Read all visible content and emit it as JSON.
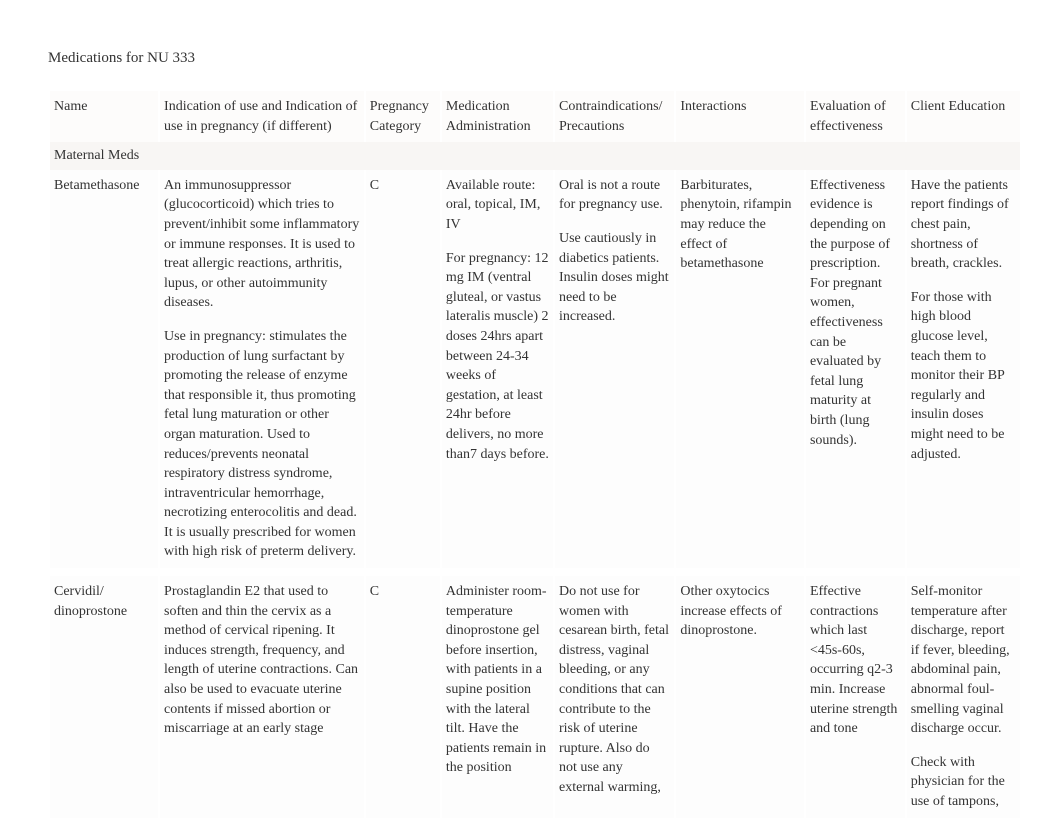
{
  "title": "Medications for NU 333",
  "columns": [
    "Name",
    "Indication of use and Indication of use in pregnancy (if different)",
    "Pregnancy Category",
    "Medication Administration",
    "Contraindications/ Precautions",
    "Interactions",
    "Evaluation of effectiveness",
    "Client Education"
  ],
  "sectionLabel": "Maternal Meds",
  "rows": [
    {
      "name": "Betamethasone",
      "indication_p1": "An immunosuppressor (glucocorticoid) which tries to prevent/inhibit some inflammatory or immune responses. It is used to treat allergic reactions, arthritis, lupus, or other autoimmunity diseases.",
      "indication_p2": "Use in pregnancy: stimulates the production of lung surfactant by promoting the release of enzyme that responsible it, thus promoting fetal lung maturation or other organ maturation. Used to reduces/prevents neonatal respiratory distress syndrome, intraventricular hemorrhage, necrotizing enterocolitis and dead. It is usually prescribed for women with high risk of preterm delivery.",
      "category": "C",
      "admin_p1": "Available route: oral, topical, IM, IV",
      "admin_p2": "For pregnancy: 12 mg IM (ventral gluteal, or vastus lateralis muscle) 2 doses 24hrs apart between 24-34 weeks of gestation, at least 24hr before delivers, no more than7 days before.",
      "contra_p1": "Oral is not a route for pregnancy use.",
      "contra_p2": "Use cautiously in diabetics patients. Insulin doses might need to be increased.",
      "interactions": "Barbiturates, phenytoin, rifampin may reduce the effect of betamethasone",
      "evaluation": "Effectiveness evidence is depending on the purpose of prescription. For pregnant women, effectiveness can be evaluated by fetal lung maturity at birth (lung sounds).",
      "education_p1": "Have the patients report findings of chest pain, shortness of breath, crackles.",
      "education_p2": "For those with high blood glucose level, teach them to monitor their BP regularly and insulin doses might need to be adjusted."
    },
    {
      "name": "Cervidil/ dinoprostone",
      "indication_p1": "Prostaglandin E2 that used to soften and thin the cervix as a method of cervical ripening. It induces strength, frequency, and length of uterine contractions. Can also be used to evacuate uterine contents if missed abortion or miscarriage at an early stage",
      "indication_p2": "",
      "category": "C",
      "admin_p1": "Administer room-temperature dinoprostone gel before insertion, with patients in a supine position with the lateral tilt. Have the patients remain in the position",
      "admin_p2": "",
      "contra_p1": "Do not use for women with cesarean birth, fetal distress, vaginal bleeding, or any conditions that can contribute to the risk of uterine rupture. Also do not use any external warming,",
      "contra_p2": "",
      "interactions": "Other oxytocics increase effects of dinoprostone.",
      "evaluation": "Effective contractions which last <45s-60s, occurring q2-3 min. Increase uterine strength and tone",
      "education_p1": "Self-monitor temperature after discharge, report if fever, bleeding, abdominal pain, abnormal foul-smelling vaginal discharge occur.",
      "education_p2": "Check with physician for the use of tampons,"
    }
  ]
}
